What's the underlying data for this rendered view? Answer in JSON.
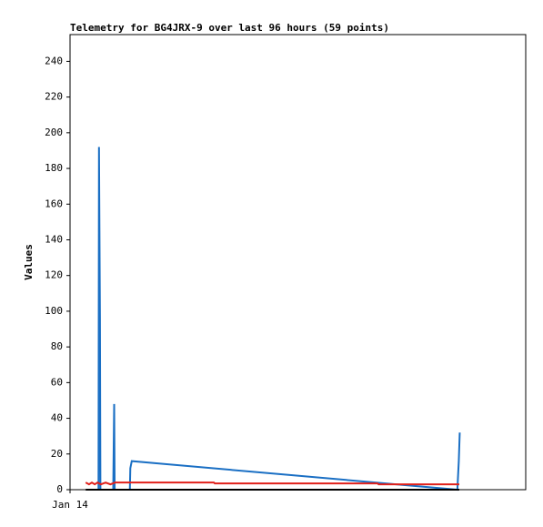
{
  "chart_data": {
    "type": "line",
    "title": "Telemetry for BG4JRX-9 over last 96 hours (59 points)",
    "y_label": "Values",
    "xlim": [
      0,
      96
    ],
    "xticks": [
      {
        "value": 0,
        "label": "Jan 14"
      }
    ],
    "ylim": [
      0,
      255
    ],
    "yticks": [
      0,
      20,
      40,
      60,
      80,
      100,
      120,
      140,
      160,
      180,
      200,
      220,
      240
    ],
    "series": [
      {
        "color": "#1a6fc4",
        "x": [
          6.0,
          6.1,
          6.3,
          6.4,
          9.1,
          9.2,
          9.3,
          9.4,
          12.6,
          12.7,
          13.0,
          81.6,
          81.9,
          82.1
        ],
        "values": [
          0,
          192,
          97,
          0,
          0,
          24,
          48,
          0,
          0,
          12,
          16,
          0,
          16,
          32
        ]
      },
      {
        "color": "#e0201a",
        "x": [
          3.3,
          4.0,
          4.6,
          5.2,
          5.8,
          6.5,
          7.5,
          8.5,
          9.5,
          30.3,
          30.5,
          64.8,
          65.0,
          82.0
        ],
        "values": [
          4,
          3,
          4,
          3,
          4,
          3,
          4,
          3,
          4,
          4,
          3.5,
          3.5,
          3,
          3
        ]
      },
      {
        "color": "#000000",
        "x": [
          3.3,
          82.0
        ],
        "values": [
          0,
          0
        ]
      }
    ]
  }
}
